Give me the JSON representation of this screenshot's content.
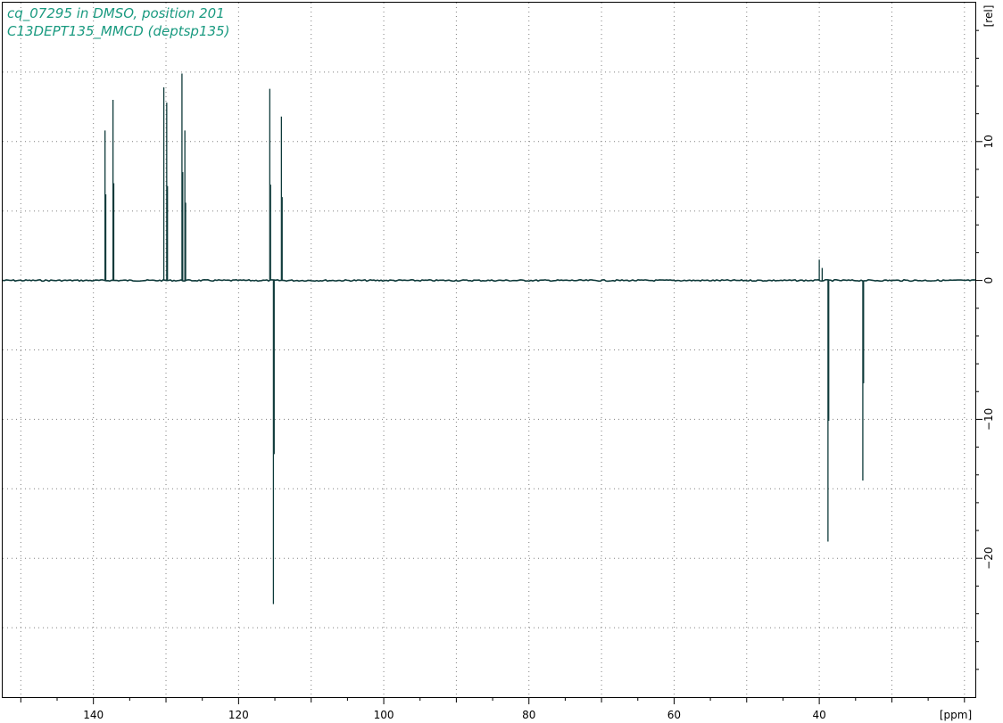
{
  "header": {
    "line1": "cq_07295 in DMSO, position 201",
    "line2": "C13DEPT135_MMCD (deptsp135)"
  },
  "colors": {
    "spectrum": "#0e3a3a",
    "title": "#1a9a80",
    "axis": "#000000",
    "grid": "#808080"
  },
  "chart_data": {
    "type": "line",
    "title": "cq_07295 in DMSO, position 201",
    "subtitle": "C13DEPT135_MMCD (deptsp135)",
    "xlabel": "[ppm]",
    "ylabel": "[rel]",
    "x_reversed": true,
    "xlim": [
      152.5,
      18.5
    ],
    "ylim": [
      -30,
      20
    ],
    "grid": true,
    "x_ticks": [
      140,
      120,
      100,
      80,
      60,
      40
    ],
    "y_ticks": [
      10,
      0,
      -10,
      -20
    ],
    "y_tick_labels": [
      "10",
      "0",
      "−10",
      "−20"
    ],
    "peaks": [
      {
        "ppm": 138.4,
        "values": [
          10.8,
          6.2
        ]
      },
      {
        "ppm": 137.3,
        "values": [
          13.0,
          7.0
        ]
      },
      {
        "ppm": 130.3,
        "values": [
          13.9,
          0
        ]
      },
      {
        "ppm": 129.9,
        "values": [
          12.8,
          6.8
        ]
      },
      {
        "ppm": 127.8,
        "values": [
          14.9,
          7.8
        ]
      },
      {
        "ppm": 127.4,
        "values": [
          10.8,
          5.6
        ]
      },
      {
        "ppm": 115.7,
        "values": [
          13.8,
          6.9
        ]
      },
      {
        "ppm": 115.2,
        "values": [
          -23.3,
          -12.5
        ]
      },
      {
        "ppm": 114.1,
        "values": [
          11.8,
          6.0
        ]
      },
      {
        "ppm": 40.0,
        "values": [
          1.5
        ]
      },
      {
        "ppm": 39.6,
        "values": [
          0.9
        ]
      },
      {
        "ppm": 38.8,
        "values": [
          -18.8,
          -10.1
        ]
      },
      {
        "ppm": 34.0,
        "values": [
          -14.4,
          -7.4
        ]
      }
    ]
  }
}
